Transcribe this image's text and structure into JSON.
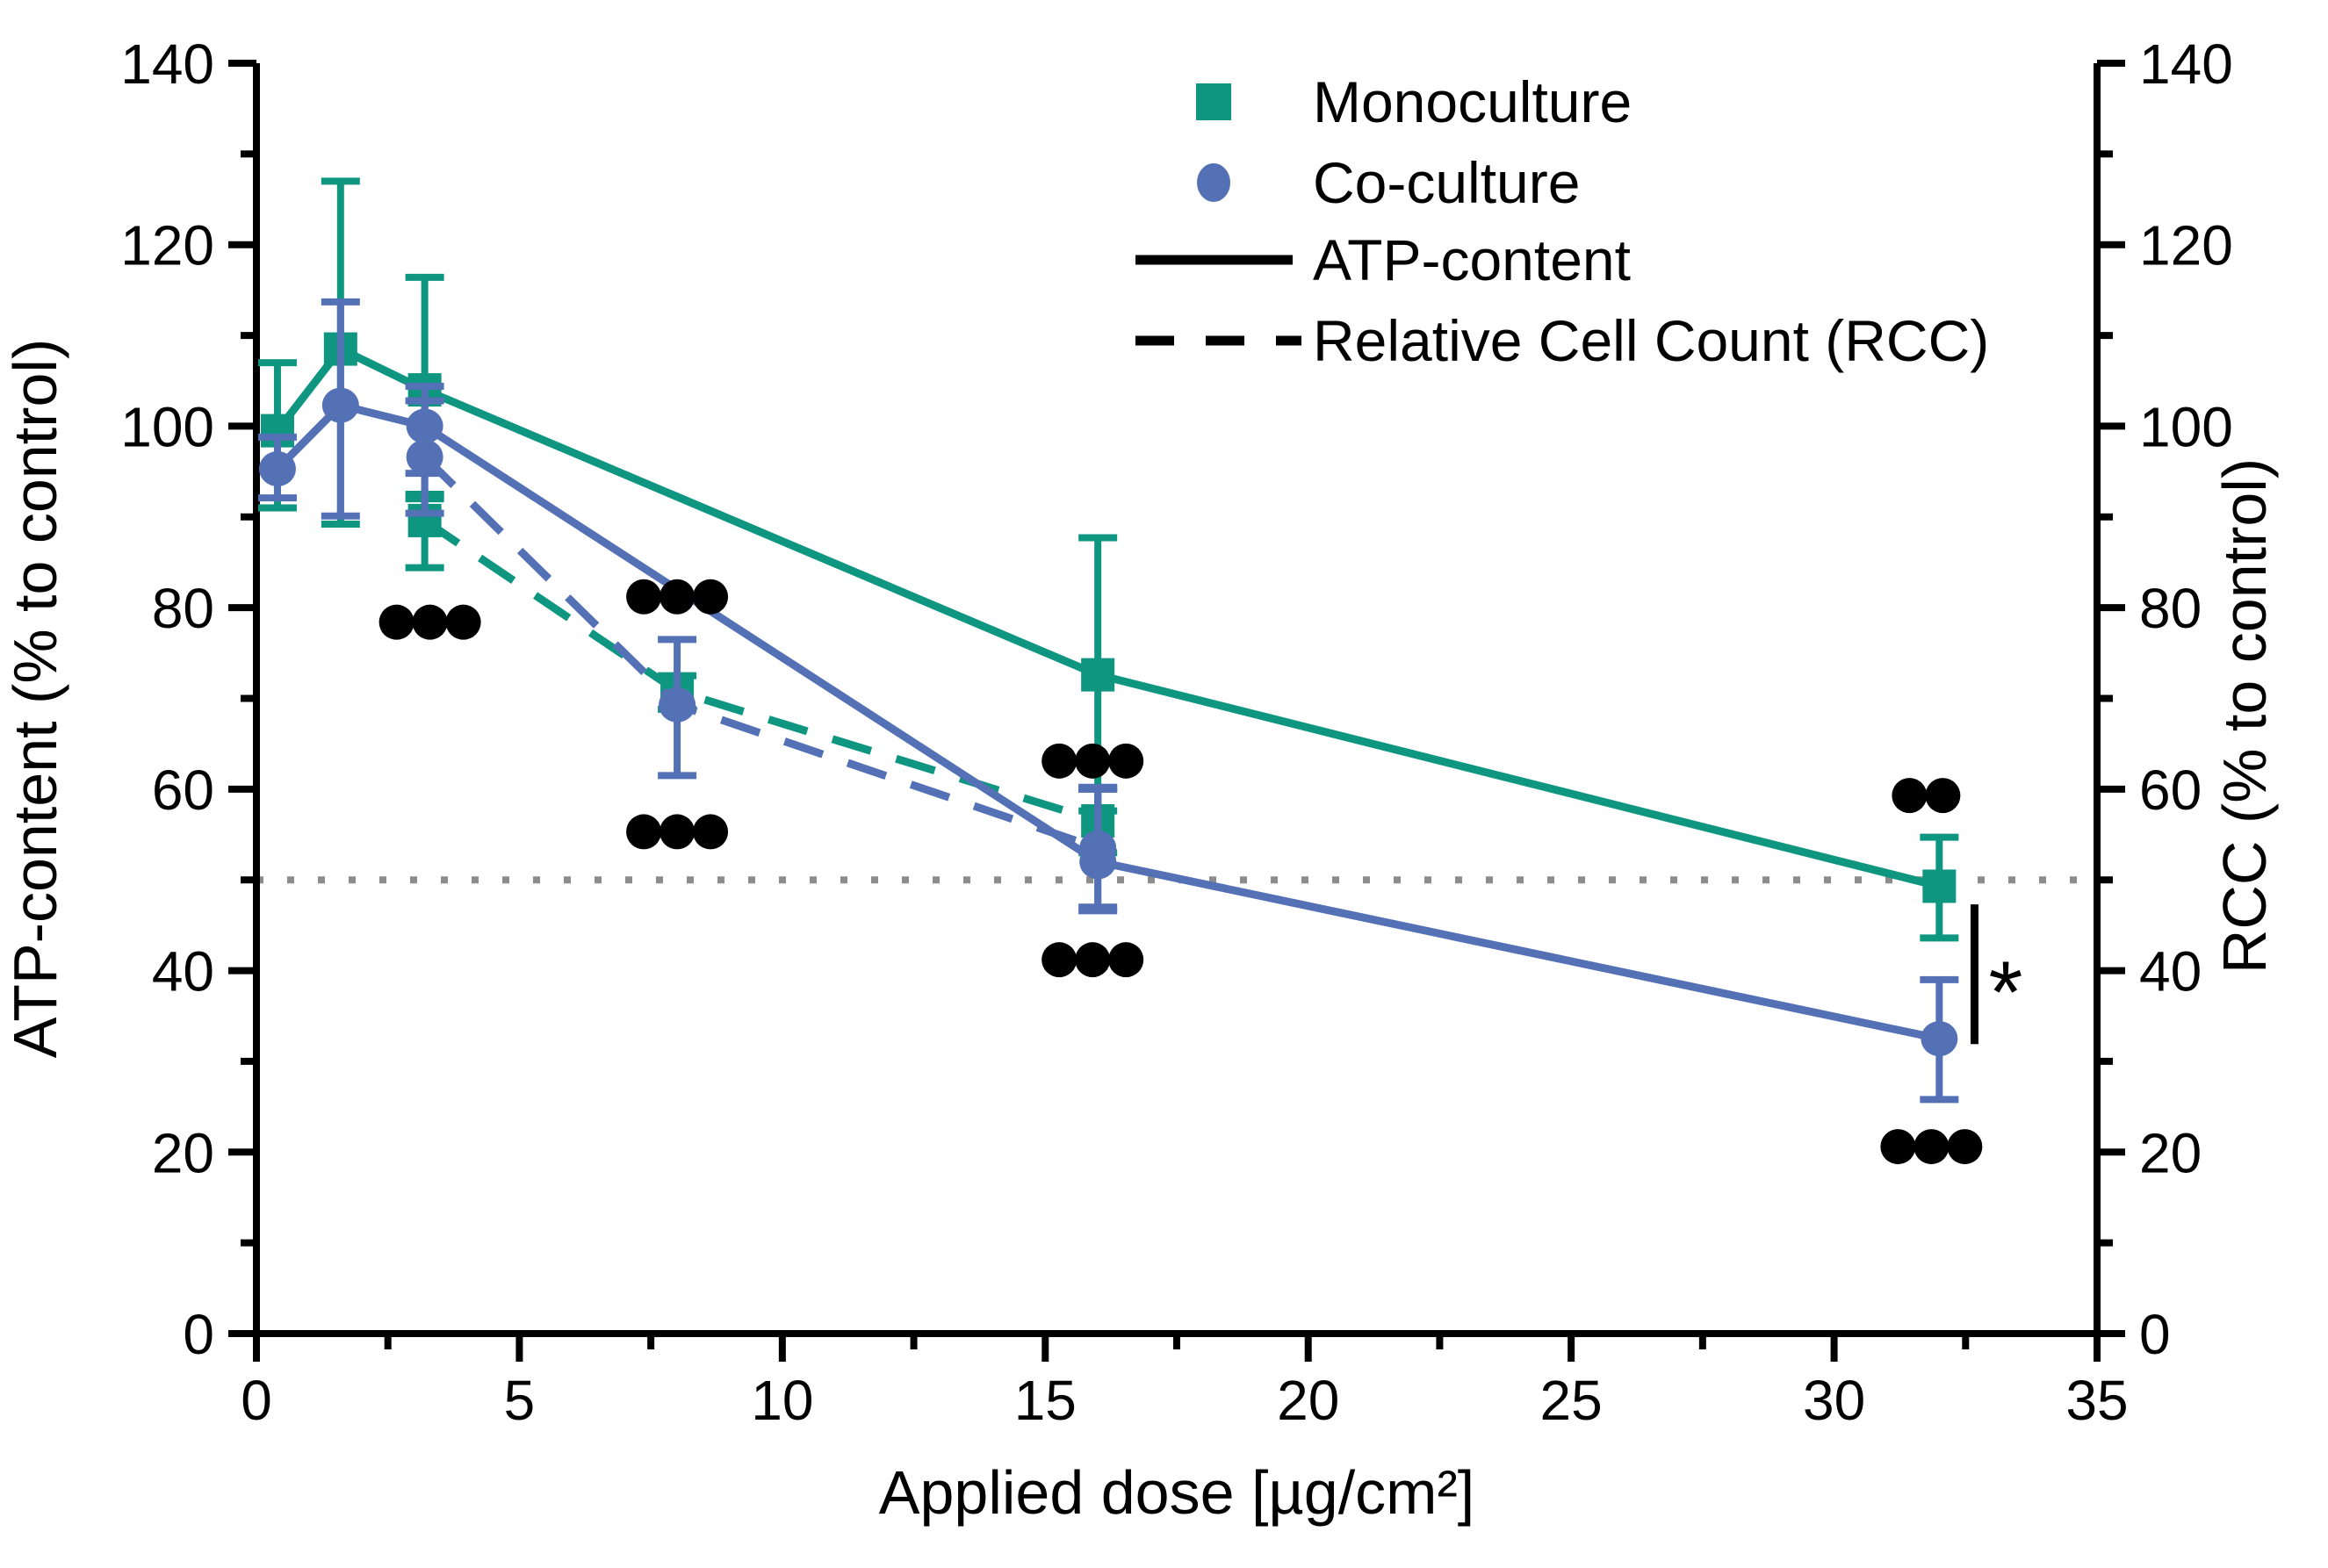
{
  "figure": {
    "background": "#ffffff",
    "x_axis": {
      "label": "Applied dose [µg/cm²]",
      "min": 0,
      "max": 35,
      "major_ticks": [
        0,
        5,
        10,
        15,
        20,
        25,
        30,
        35
      ],
      "minor_ticks": [
        2.5,
        7.5,
        12.5,
        17.5,
        22.5,
        27.5,
        32.5
      ]
    },
    "y_left_axis": {
      "label": "ATP-content (% to control)",
      "min": 0,
      "max": 140,
      "major_ticks": [
        0,
        20,
        40,
        60,
        80,
        100,
        120,
        140
      ],
      "minor_ticks": [
        10,
        30,
        50,
        70,
        90,
        110,
        130
      ]
    },
    "y_right_axis": {
      "label": "RCC (% to control)",
      "min": 0,
      "max": 140,
      "major_ticks": [
        0,
        20,
        40,
        60,
        80,
        100,
        120,
        140
      ],
      "minor_ticks": [
        10,
        30,
        50,
        70,
        90,
        110,
        130
      ]
    },
    "colors": {
      "monoculture": "#0E9681",
      "coculture": "#5571B6",
      "significance": "#000000",
      "reference_line": "#8C8C8C",
      "axis": "#000000"
    },
    "legend": {
      "items": [
        {
          "swatch": "square",
          "color": "#0E9681",
          "label": "Monoculture"
        },
        {
          "swatch": "circle",
          "color": "#5571B6",
          "label": "Co-culture"
        },
        {
          "swatch": "solid-line",
          "color": "#000000",
          "label": "ATP-content"
        },
        {
          "swatch": "dashed-line",
          "color": "#000000",
          "label": "Relative Cell Count (RCC)"
        }
      ]
    }
  },
  "chart_data": {
    "type": "line",
    "title": "",
    "xlabel": "Applied dose [µg/cm²]",
    "ylabel_left": "ATP-content (% to control)",
    "ylabel_right": "RCC (% to control)",
    "xlim": [
      0,
      35
    ],
    "ylim": [
      0,
      140
    ],
    "grid": false,
    "legend_position": "top-right-inside",
    "reference_line": {
      "y": 50,
      "style": "dotted",
      "color": "#8C8C8C"
    },
    "series": [
      {
        "name": "Monoculture ATP-content",
        "culture": "monoculture",
        "measure": "ATP-content",
        "color": "#0E9681",
        "line": "solid",
        "marker": "square",
        "points": [
          {
            "x": 0.4,
            "y": 99.5,
            "err_lo": 91.0,
            "err_hi": 107.0
          },
          {
            "x": 1.6,
            "y": 108.5,
            "err_lo": 89.2,
            "err_hi": 127.0
          },
          {
            "x": 3.2,
            "y": 104.0,
            "err_lo": 92.0,
            "err_hi": 116.4
          },
          {
            "x": 16.0,
            "y": 72.6,
            "err_lo": 57.6,
            "err_hi": 87.7
          },
          {
            "x": 32.0,
            "y": 49.3,
            "err_lo": 43.6,
            "err_hi": 54.7
          }
        ]
      },
      {
        "name": "Monoculture Relative Cell Count (RCC)",
        "culture": "monoculture",
        "measure": "RCC",
        "color": "#0E9681",
        "line": "dashed",
        "marker": "square",
        "points": [
          {
            "x": 3.2,
            "y": 89.6,
            "err_lo": 84.4,
            "err_hi": 92.5
          },
          {
            "x": 8.0,
            "y": 70.8,
            "err_lo": 68.8,
            "err_hi": 72.5
          },
          {
            "x": 16.0,
            "y": 56.5,
            "err_lo": 53.0,
            "err_hi": 60.0
          }
        ]
      },
      {
        "name": "Co-culture ATP-content",
        "culture": "coculture",
        "measure": "ATP-content",
        "color": "#5571B6",
        "line": "solid",
        "marker": "circle",
        "points": [
          {
            "x": 0.4,
            "y": 95.3,
            "err_lo": 92.1,
            "err_hi": 98.8
          },
          {
            "x": 1.6,
            "y": 102.3,
            "err_lo": 90.1,
            "err_hi": 113.7
          },
          {
            "x": 3.2,
            "y": 100.0,
            "err_lo": 94.8,
            "err_hi": 104.4
          },
          {
            "x": 16.0,
            "y": 52.0,
            "err_lo": 46.6,
            "err_hi": 60.0
          },
          {
            "x": 32.0,
            "y": 32.5,
            "err_lo": 25.8,
            "err_hi": 39.0
          }
        ]
      },
      {
        "name": "Co-culture Relative Cell Count (RCC)",
        "culture": "coculture",
        "measure": "RCC",
        "color": "#5571B6",
        "line": "dashed",
        "marker": "circle",
        "points": [
          {
            "x": 3.2,
            "y": 96.6,
            "err_lo": 90.4,
            "err_hi": 102.8
          },
          {
            "x": 8.0,
            "y": 69.3,
            "err_lo": 61.5,
            "err_hi": 76.5
          },
          {
            "x": 16.0,
            "y": 53.5,
            "err_lo": 47.0,
            "err_hi": 60.2
          }
        ]
      }
    ],
    "significance_dot_groups": [
      {
        "x": 3.3,
        "y": 78.4,
        "count": 3
      },
      {
        "x": 8.0,
        "y": 81.2,
        "count": 3
      },
      {
        "x": 8.0,
        "y": 55.3,
        "count": 3
      },
      {
        "x": 15.9,
        "y": 63.1,
        "count": 3
      },
      {
        "x": 15.9,
        "y": 41.2,
        "count": 3
      },
      {
        "x": 31.75,
        "y": 59.3,
        "count": 2
      },
      {
        "x": 31.85,
        "y": 20.6,
        "count": 3
      }
    ],
    "comparison_bracket": {
      "x": 32.67,
      "y_top": 47.3,
      "y_bottom": 31.9,
      "label": "*"
    }
  }
}
